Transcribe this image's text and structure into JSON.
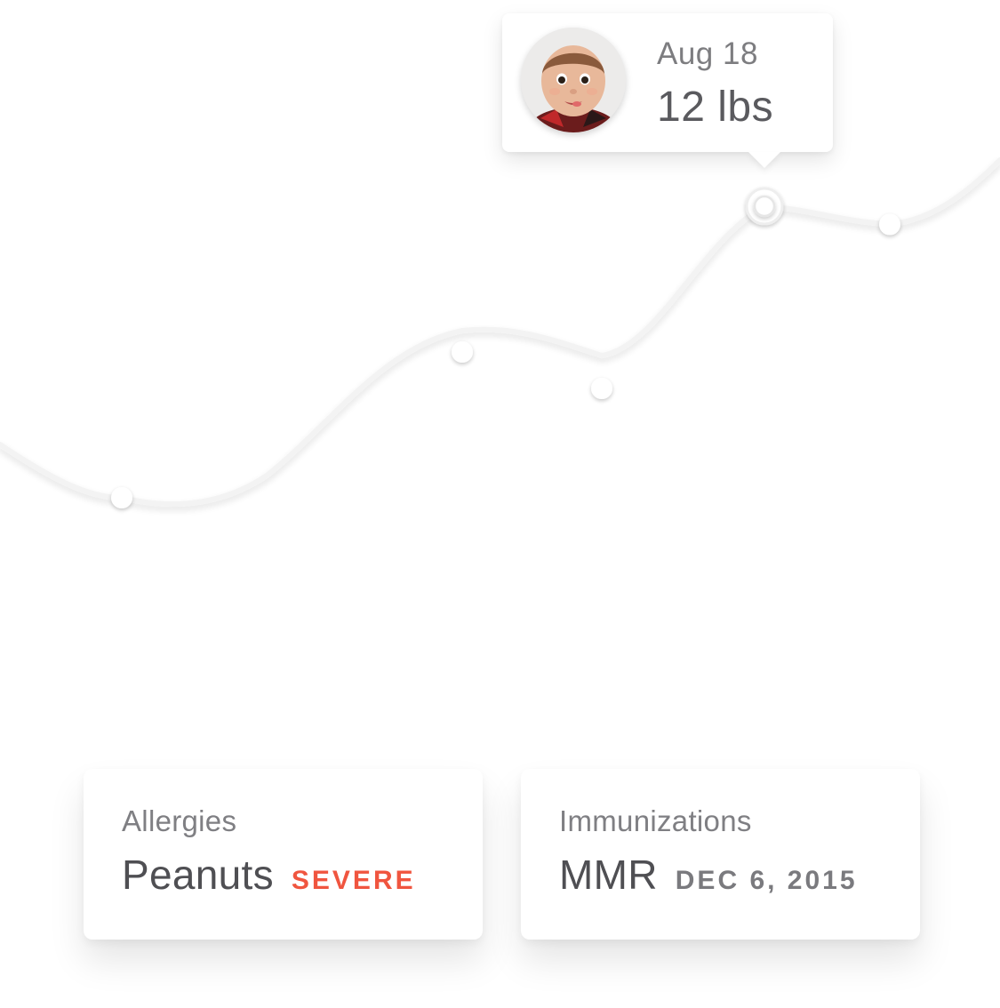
{
  "chart_data": {
    "type": "line",
    "title": "",
    "xlabel": "",
    "ylabel": "",
    "points": [
      {
        "label": "",
        "value": 4
      },
      {
        "label": "",
        "value": 8
      },
      {
        "label": "",
        "value": 7
      },
      {
        "label": "Aug 18",
        "value": 12,
        "selected": true
      },
      {
        "label": "",
        "value": 11.5
      }
    ],
    "grid": false,
    "legend": "none"
  },
  "tooltip": {
    "date": "Aug 18",
    "value": "12 lbs",
    "avatar_icon": "baby-avatar"
  },
  "cards": {
    "allergies": {
      "label": "Allergies",
      "value": "Peanuts",
      "tag": "SEVERE"
    },
    "immunizations": {
      "label": "Immunizations",
      "value": "MMR",
      "tag": "DEC 6, 2015"
    }
  },
  "colors": {
    "severe": "#f0553f",
    "line": "#f2f2f2",
    "text_primary": "#4f4f53",
    "text_secondary": "#7f7f83"
  }
}
